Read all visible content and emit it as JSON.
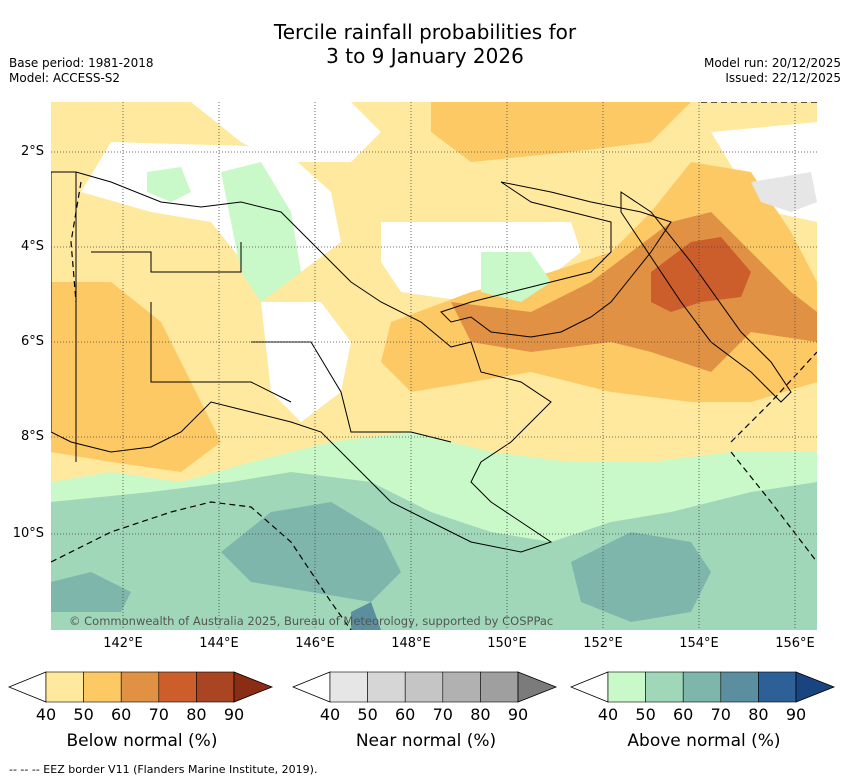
{
  "title": {
    "line1": "Tercile rainfall probabilities for",
    "line2": "3 to 9 January 2026"
  },
  "meta": {
    "base_period": "Base period: 1981-2018",
    "model": "Model: ACCESS-S2",
    "model_run": "Model run: 20/12/2025",
    "issued": "Issued: 22/12/2025"
  },
  "map": {
    "lat_labels": [
      "2°S",
      "4°S",
      "6°S",
      "8°S",
      "10°S"
    ],
    "lon_labels": [
      "142°E",
      "144°E",
      "146°E",
      "148°E",
      "150°E",
      "152°E",
      "154°E",
      "156°E"
    ],
    "extent": {
      "lon": [
        140.5,
        156.5
      ],
      "lat": [
        -1.0,
        -12.0
      ]
    },
    "copyright": "© Commonwealth of Australia 2025, Bureau of Meteorology, supported by COSPPac"
  },
  "colorbars": [
    {
      "title": "Below normal (%)",
      "ticks": [
        "40",
        "50",
        "60",
        "70",
        "80",
        "90"
      ],
      "colors": [
        "#fee99e",
        "#fdc965",
        "#e09143",
        "#cc5e2b",
        "#aa4523",
        "#8b2c14"
      ]
    },
    {
      "title": "Near normal (%)",
      "ticks": [
        "40",
        "50",
        "60",
        "70",
        "80",
        "90"
      ],
      "colors": [
        "#e6e6e6",
        "#d6d6d6",
        "#c5c5c5",
        "#b1b1b1",
        "#9f9f9f",
        "#7b7b7b"
      ]
    },
    {
      "title": "Above normal (%)",
      "ticks": [
        "40",
        "50",
        "60",
        "70",
        "80",
        "90"
      ],
      "colors": [
        "#c9f9c9",
        "#a1d7b9",
        "#7fb6ac",
        "#5b8fa0",
        "#2e6098",
        "#1a4480"
      ]
    }
  ],
  "footnote": "--  --  -- EEZ border V11 (Flanders Marine Institute, 2019)."
}
